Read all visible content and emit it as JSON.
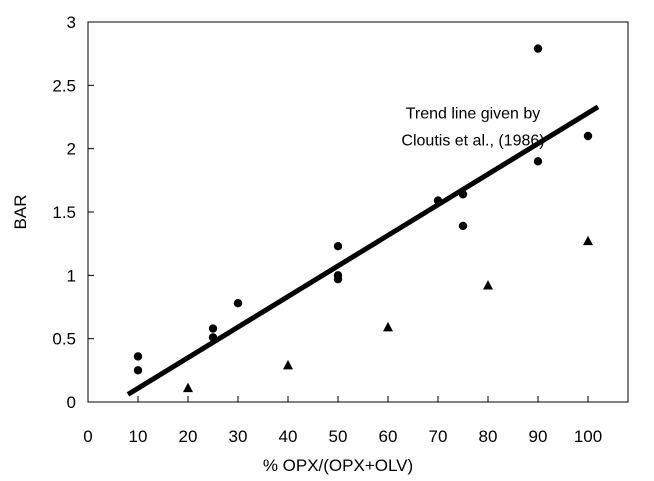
{
  "chart_data": {
    "type": "scatter",
    "title": "",
    "xlabel": "% OPX/(OPX+OLV)",
    "ylabel": "BAR",
    "xlim": [
      0,
      108
    ],
    "ylim": [
      0,
      3
    ],
    "x_ticks": [
      "0",
      "10",
      "20",
      "30",
      "40",
      "50",
      "60",
      "70",
      "80",
      "90",
      "100"
    ],
    "y_ticks": [
      "0",
      "0.5",
      "1",
      "1.5",
      "2",
      "2.5",
      "3"
    ],
    "grid": false,
    "legend": "none",
    "series": [
      {
        "marker": "circle",
        "color": "#000000",
        "x": [
          10,
          10,
          25,
          25,
          30,
          50,
          50,
          50,
          70,
          75,
          75,
          90,
          90,
          100
        ],
        "y": [
          0.36,
          0.25,
          0.58,
          0.51,
          0.78,
          1.23,
          1.0,
          0.97,
          1.59,
          1.64,
          1.39,
          2.79,
          1.9,
          2.1
        ]
      },
      {
        "marker": "triangle",
        "color": "#000000",
        "x": [
          20,
          40,
          60,
          80,
          100
        ],
        "y": [
          0.11,
          0.29,
          0.59,
          0.92,
          1.27
        ]
      }
    ],
    "trend_line": {
      "x": [
        8,
        102
      ],
      "y": [
        0.06,
        2.33
      ],
      "color": "#000000"
    },
    "annotation": {
      "lines": [
        "Trend line given by",
        "Cloutis et al., (1986)"
      ],
      "anchor_x": 77,
      "anchor_y": 2.24
    }
  }
}
